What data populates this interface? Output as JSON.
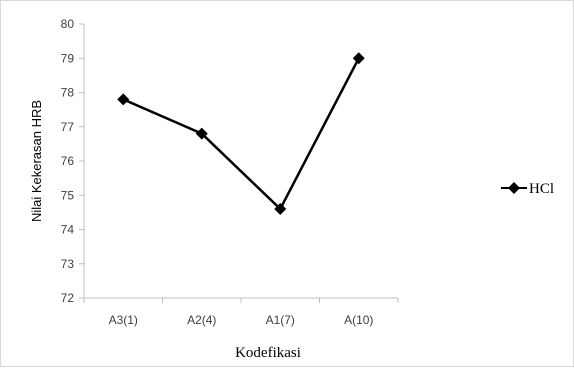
{
  "chart_data": {
    "type": "line",
    "title": "",
    "xlabel": "Kodefikasi",
    "ylabel": "Nilai Kekerasan HRB",
    "categories": [
      "A3(1)",
      "A2(4)",
      "A1(7)",
      "A(10)"
    ],
    "ylim": [
      72,
      80
    ],
    "yticks": [
      "72",
      "73",
      "74",
      "75",
      "76",
      "77",
      "78",
      "79",
      "80"
    ],
    "series": [
      {
        "name": "HCl",
        "values": [
          77.8,
          76.8,
          74.6,
          79.0
        ],
        "color": "#000000",
        "marker": "diamond"
      }
    ],
    "legend": {
      "position": "right"
    },
    "grid": false
  }
}
